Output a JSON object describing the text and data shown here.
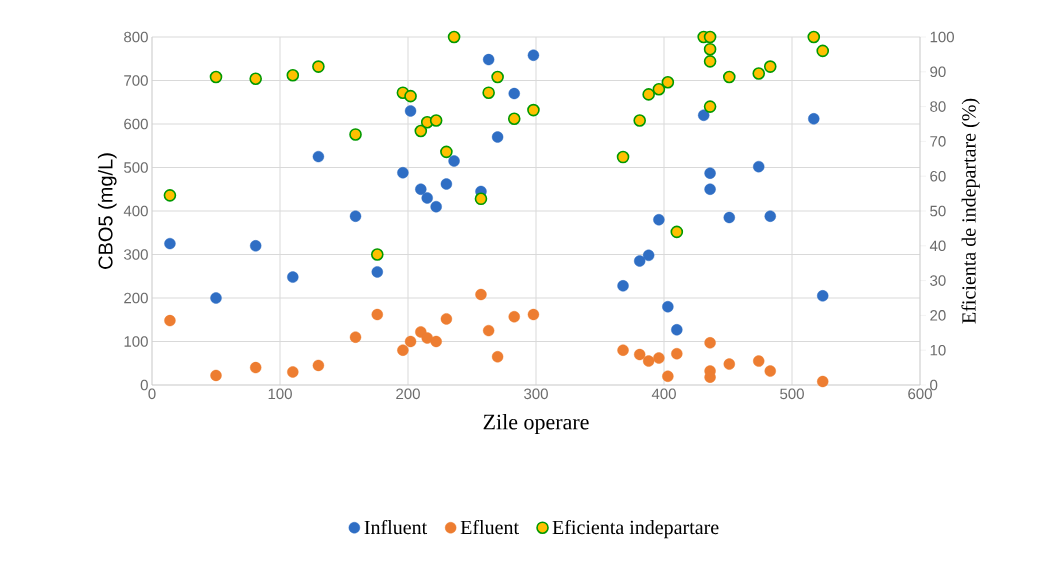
{
  "chart_data": {
    "type": "scatter",
    "xlabel": "Zile operare",
    "ylabel": "CBO5 (mg/L)",
    "y2label": "Eficienta de indepartare (%)",
    "xlim": [
      0,
      600
    ],
    "xticks": [
      0,
      100,
      200,
      300,
      400,
      500,
      600
    ],
    "ylim": [
      0,
      800
    ],
    "yticks": [
      0,
      100,
      200,
      300,
      400,
      500,
      600,
      700,
      800
    ],
    "y2lim": [
      0,
      100
    ],
    "y2ticks": [
      0,
      10,
      20,
      30,
      40,
      50,
      60,
      70,
      80,
      90,
      100
    ],
    "grid": true,
    "legend": "bottom",
    "marker": "circle",
    "series": [
      {
        "name": "Influent",
        "color": "#2f6ec4",
        "x": [
          14,
          50,
          81,
          110,
          130,
          159,
          176,
          196,
          202,
          210,
          215,
          222,
          230,
          236,
          257,
          263,
          270,
          283,
          298,
          368,
          381,
          388,
          396,
          403,
          410,
          431,
          436,
          436,
          451,
          474,
          483,
          517,
          524
        ],
        "values": [
          325,
          200,
          320,
          248,
          525,
          388,
          260,
          488,
          630,
          450,
          430,
          410,
          462,
          515,
          445,
          748,
          570,
          670,
          758,
          228,
          285,
          298,
          380,
          180,
          127,
          620,
          487,
          450,
          385,
          502,
          388,
          612,
          205
        ]
      },
      {
        "name": "Efluent",
        "color": "#ed7d31",
        "x": [
          14,
          50,
          81,
          110,
          130,
          159,
          176,
          196,
          202,
          210,
          215,
          222,
          230,
          257,
          263,
          270,
          283,
          298,
          368,
          381,
          388,
          396,
          403,
          410,
          436,
          436,
          436,
          451,
          474,
          483,
          524
        ],
        "values": [
          148,
          22,
          40,
          30,
          45,
          110,
          162,
          80,
          100,
          122,
          108,
          100,
          152,
          208,
          125,
          65,
          157,
          162,
          80,
          70,
          55,
          62,
          20,
          72,
          97,
          32,
          18,
          48,
          55,
          32,
          8
        ]
      },
      {
        "name": "Eficienta indepartare",
        "color": "#ffc000",
        "axis": "y2",
        "x": [
          14,
          50,
          81,
          110,
          130,
          159,
          176,
          196,
          202,
          210,
          215,
          222,
          230,
          236,
          257,
          263,
          270,
          283,
          298,
          368,
          381,
          388,
          396,
          403,
          410,
          431,
          436,
          436,
          436,
          436,
          451,
          474,
          483,
          517,
          524
        ],
        "values": [
          54.5,
          88.5,
          88,
          89,
          91.5,
          72,
          37.5,
          84,
          83,
          73,
          75.5,
          76,
          67,
          100,
          53.5,
          84,
          88.5,
          76.5,
          79,
          65.5,
          76,
          83.5,
          85,
          87,
          44,
          100,
          100,
          96.5,
          93,
          80,
          88.5,
          89.5,
          91.5,
          100,
          96
        ]
      }
    ]
  }
}
